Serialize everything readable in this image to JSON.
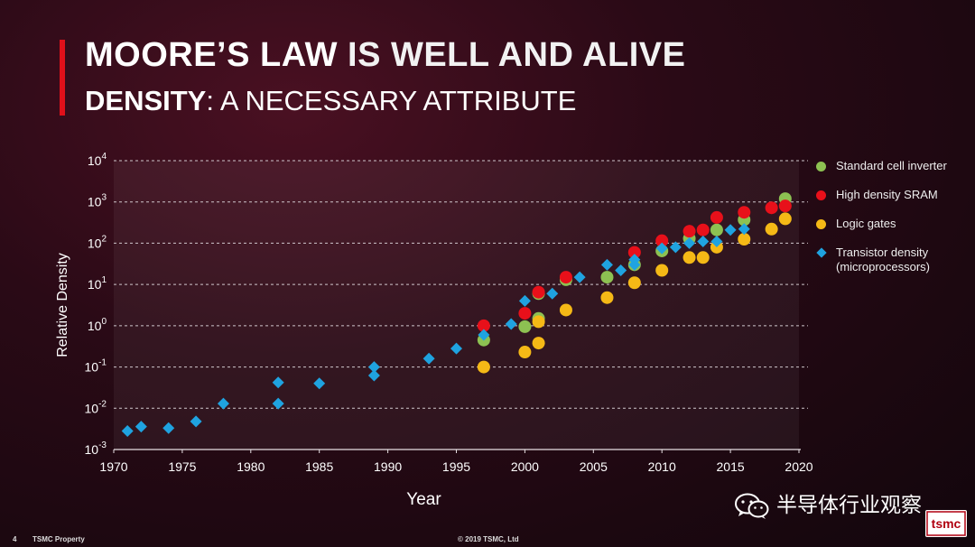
{
  "slide": {
    "title_bold": "MOORE’S LAW",
    "title_rest": " IS WELL AND ALIVE",
    "subtitle_bold": "DENSITY",
    "subtitle_rest": ": A NECESSARY ATTRIBUTE",
    "page_number": "4",
    "footer_left": "TSMC Property",
    "footer_center": "© 2019 TSMC, Ltd",
    "watermark_text": "半导体行业观察",
    "logo_text": "tsmc"
  },
  "colors": {
    "accent": "#e0101a",
    "series_green": "#8dc152",
    "series_red": "#e8101a",
    "series_yellow": "#f5b916",
    "series_blue": "#1fa3e0"
  },
  "chart_data": {
    "type": "scatter",
    "title": "",
    "xlabel": "Year",
    "ylabel": "Relative Density",
    "xlim": [
      1970,
      2020
    ],
    "ylim_log10": [
      -3,
      4
    ],
    "x_ticks": [
      "1970",
      "1975",
      "1980",
      "1985",
      "1990",
      "1995",
      "2000",
      "2005",
      "2010",
      "2015",
      "2020"
    ],
    "y_ticks": [
      {
        "base": "10",
        "exp": "4"
      },
      {
        "base": "10",
        "exp": "3"
      },
      {
        "base": "10",
        "exp": "2"
      },
      {
        "base": "10",
        "exp": "1"
      },
      {
        "base": "10",
        "exp": "0"
      },
      {
        "base": "10",
        "exp": "-1"
      },
      {
        "base": "10",
        "exp": "-2"
      },
      {
        "base": "10",
        "exp": "-3"
      }
    ],
    "grid": true,
    "legend_position": "right",
    "series": [
      {
        "name": "Standard cell inverter",
        "marker": "circle",
        "color": "#8dc152",
        "points": [
          [
            1997,
            0.45
          ],
          [
            2000,
            0.95
          ],
          [
            2001,
            1.5
          ],
          [
            2001,
            6.0
          ],
          [
            2003,
            13
          ],
          [
            2006,
            15
          ],
          [
            2008,
            30
          ],
          [
            2010,
            65
          ],
          [
            2012,
            130
          ],
          [
            2014,
            210
          ],
          [
            2016,
            370
          ],
          [
            2019,
            1200
          ]
        ]
      },
      {
        "name": "High density SRAM",
        "marker": "circle",
        "color": "#e8101a",
        "points": [
          [
            1997,
            1.0
          ],
          [
            2000,
            2.0
          ],
          [
            2001,
            6.5
          ],
          [
            2003,
            15
          ],
          [
            2008,
            60
          ],
          [
            2010,
            115
          ],
          [
            2012,
            195
          ],
          [
            2013,
            210
          ],
          [
            2014,
            420
          ],
          [
            2016,
            560
          ],
          [
            2018,
            720
          ],
          [
            2019,
            800
          ]
        ]
      },
      {
        "name": "Logic gates",
        "marker": "circle",
        "color": "#f5b916",
        "points": [
          [
            1997,
            0.1
          ],
          [
            2000,
            0.23
          ],
          [
            2001,
            0.38
          ],
          [
            2001,
            1.25
          ],
          [
            2003,
            2.4
          ],
          [
            2006,
            4.8
          ],
          [
            2008,
            11
          ],
          [
            2010,
            22
          ],
          [
            2012,
            45
          ],
          [
            2013,
            45
          ],
          [
            2014,
            80
          ],
          [
            2016,
            125
          ],
          [
            2018,
            220
          ],
          [
            2019,
            390
          ]
        ]
      },
      {
        "name": "Transistor density\n(microprocessors)",
        "marker": "diamond",
        "color": "#1fa3e0",
        "points": [
          [
            1971,
            0.0028
          ],
          [
            1972,
            0.0036
          ],
          [
            1974,
            0.0033
          ],
          [
            1976,
            0.0048
          ],
          [
            1978,
            0.013
          ],
          [
            1982,
            0.013
          ],
          [
            1982,
            0.042
          ],
          [
            1985,
            0.04
          ],
          [
            1989,
            0.062
          ],
          [
            1989,
            0.1
          ],
          [
            1993,
            0.16
          ],
          [
            1995,
            0.28
          ],
          [
            1997,
            0.6
          ],
          [
            1999,
            1.1
          ],
          [
            2000,
            4.0
          ],
          [
            2002,
            6.0
          ],
          [
            2004,
            15
          ],
          [
            2006,
            30
          ],
          [
            2007,
            22
          ],
          [
            2008,
            30
          ],
          [
            2008,
            40
          ],
          [
            2010,
            75
          ],
          [
            2011,
            80
          ],
          [
            2012,
            100
          ],
          [
            2013,
            110
          ],
          [
            2014,
            110
          ],
          [
            2015,
            210
          ],
          [
            2016,
            220
          ]
        ]
      }
    ]
  }
}
